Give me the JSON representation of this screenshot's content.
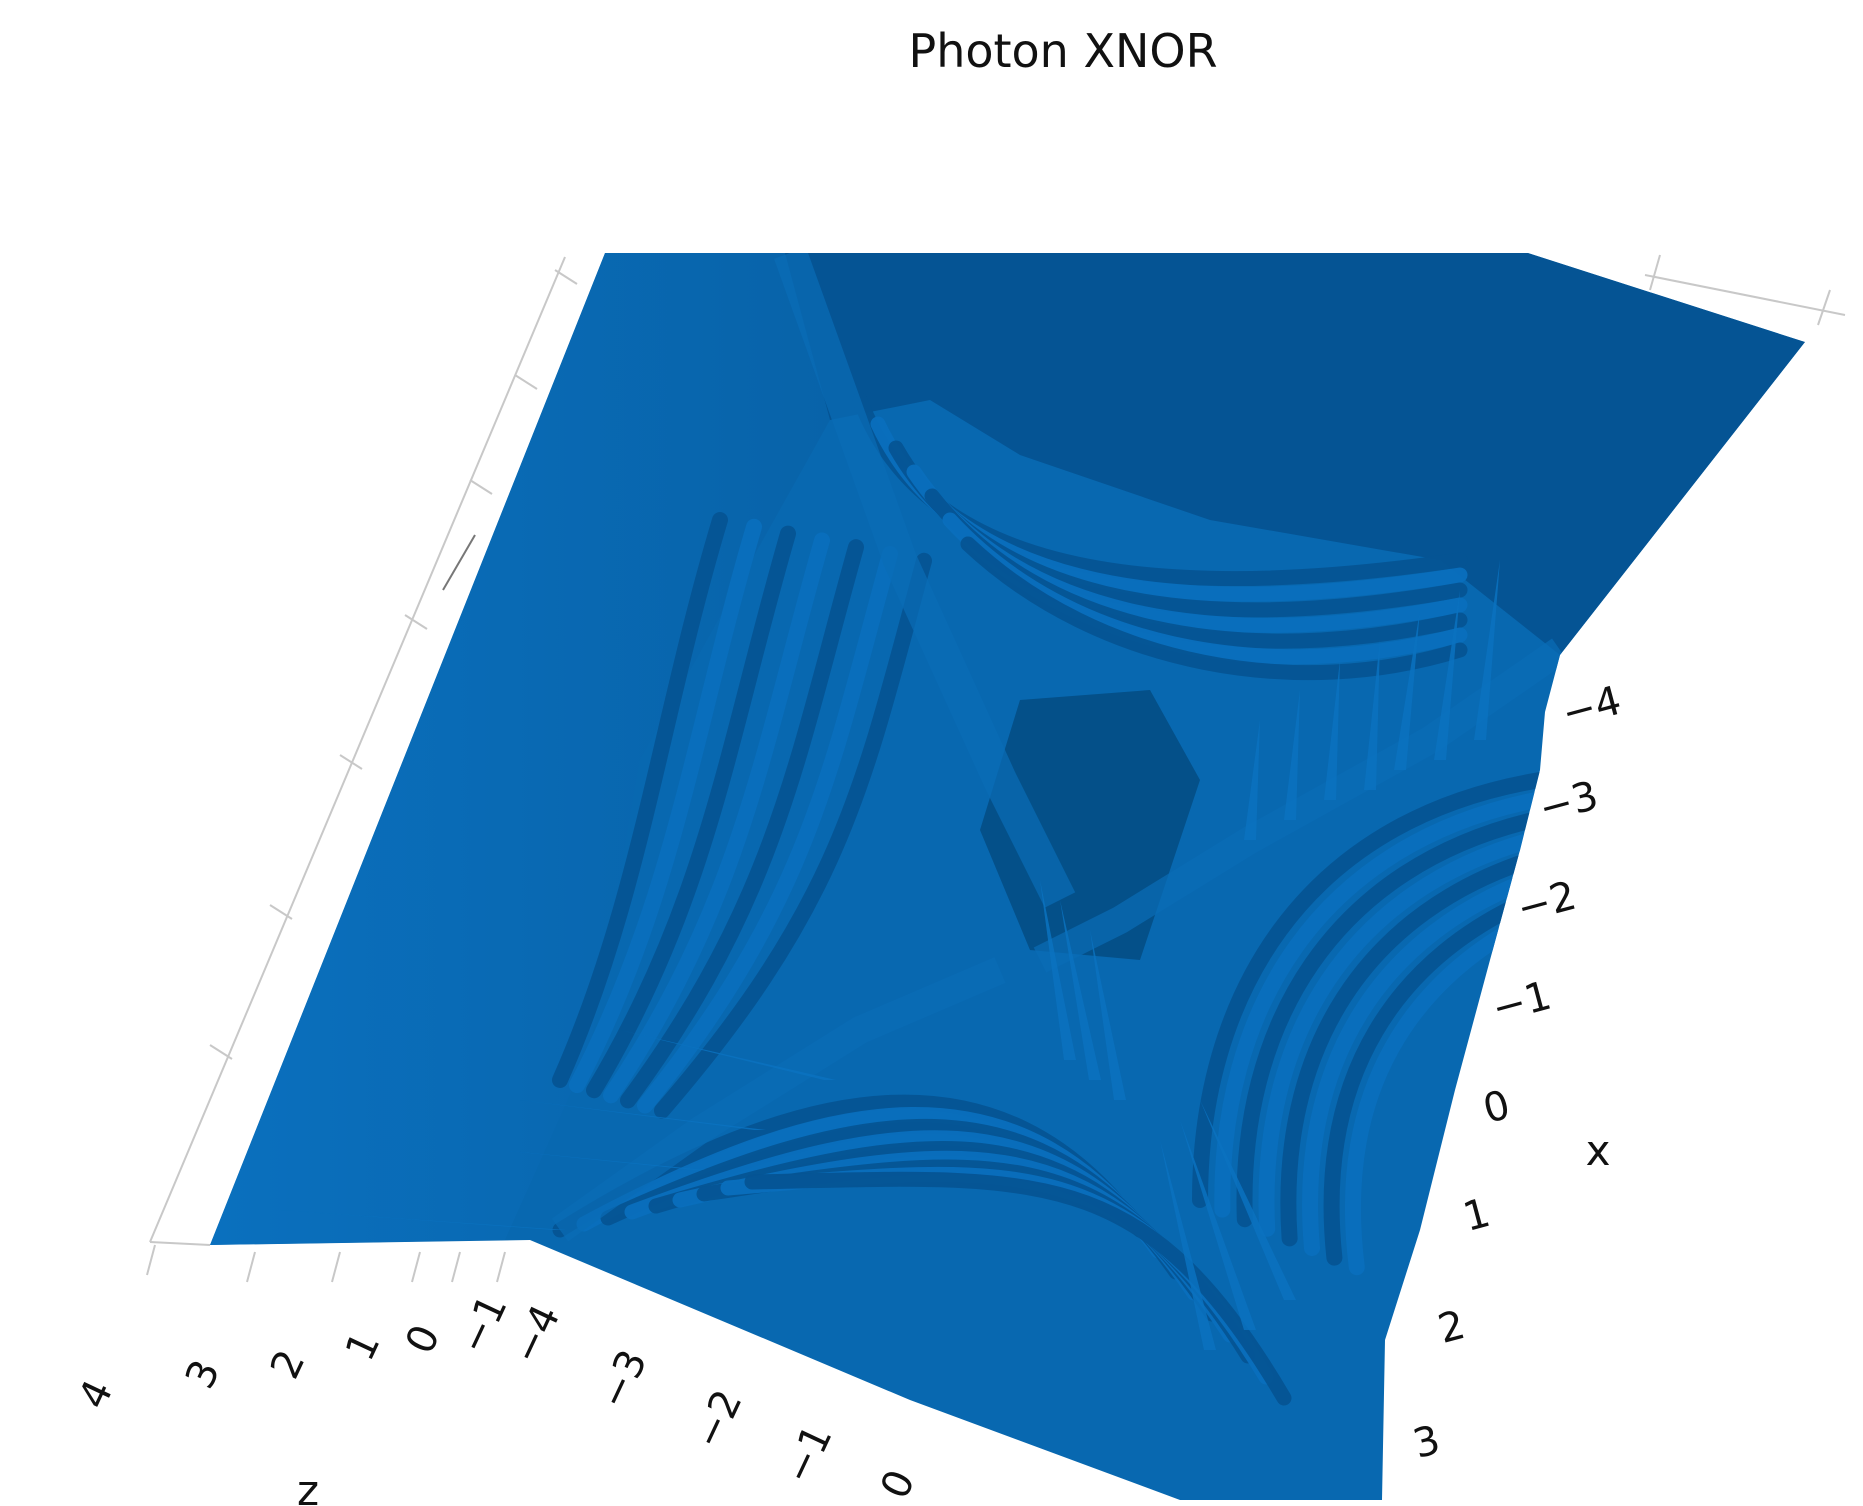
{
  "chart_data": {
    "type": "surface",
    "title": "Photon XNOR",
    "xlabel": "x",
    "ylabel": "",
    "zlabel": "z",
    "x_ticks": [
      "−4",
      "−3",
      "−2",
      "−1",
      "0",
      "1",
      "2",
      "3"
    ],
    "y_ticks": [
      "−4",
      "−3",
      "−2",
      "−1",
      "0"
    ],
    "z_ticks": [
      "4",
      "3",
      "2",
      "1",
      "0",
      "−1"
    ],
    "xlim": [
      -4.5,
      3.5
    ],
    "ylim": [
      -4.5,
      0.5
    ],
    "zlim": [
      -1.5,
      4.5
    ],
    "colors": {
      "surface": "#0868b0",
      "surface_dark": "#055494",
      "surface_light": "#0a6fbd",
      "grid": "#c8c8c8"
    }
  }
}
